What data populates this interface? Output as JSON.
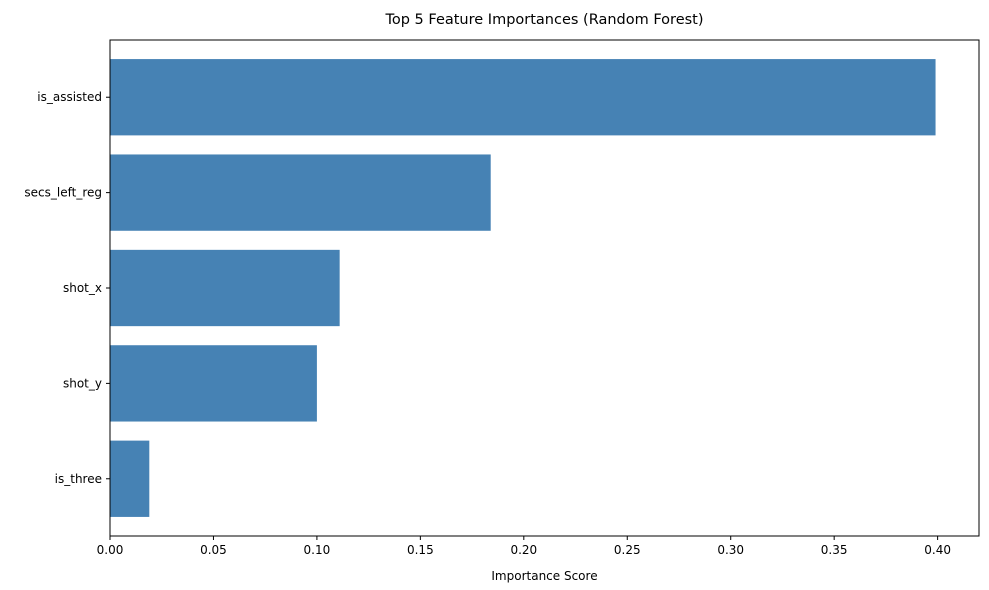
{
  "chart_data": {
    "type": "bar",
    "orientation": "horizontal",
    "title": "Top 5 Feature Importances (Random Forest)",
    "xlabel": "Importance Score",
    "ylabel": "",
    "categories": [
      "is_assisted",
      "secs_left_reg",
      "shot_x",
      "shot_y",
      "is_three"
    ],
    "values": [
      0.399,
      0.184,
      0.111,
      0.1,
      0.019
    ],
    "xlim": [
      0,
      0.42
    ],
    "xticks": [
      0.0,
      0.05,
      0.1,
      0.15,
      0.2,
      0.25,
      0.3,
      0.35,
      0.4
    ],
    "xtick_labels": [
      "0.00",
      "0.05",
      "0.10",
      "0.15",
      "0.20",
      "0.25",
      "0.30",
      "0.35",
      "0.40"
    ],
    "bar_color": "#4682b4",
    "grid": false,
    "legend": "none"
  }
}
